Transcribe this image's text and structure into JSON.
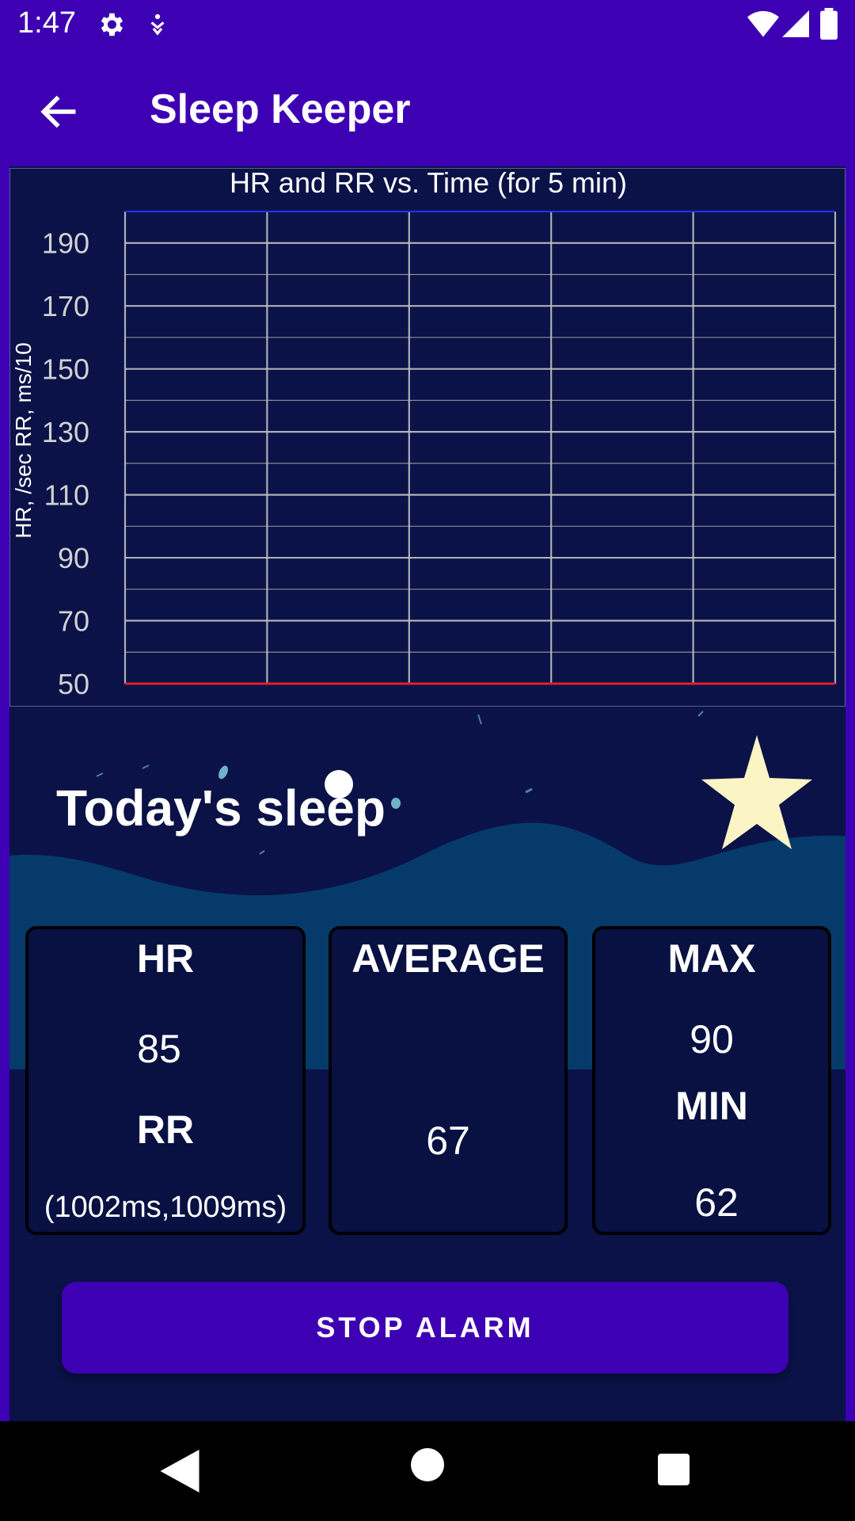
{
  "status_bar": {
    "time": "1:47",
    "icons": [
      "gear-icon",
      "accessibility-icon",
      "wifi-icon",
      "signal-icon",
      "battery-icon"
    ]
  },
  "app_bar": {
    "title": "Sleep Keeper",
    "back_icon": "arrow-left-icon"
  },
  "chart_data": {
    "type": "line",
    "title": "HR and RR vs. Time (for 5 min)",
    "ylabel": "HR, /sec RR, ms/10",
    "xlabel": "",
    "ylim": [
      50,
      200
    ],
    "yticks": [
      50,
      70,
      90,
      110,
      130,
      150,
      170,
      190
    ],
    "x_divisions": 5,
    "grid": true,
    "series": [],
    "colors": {
      "top_line": "#2233ff",
      "bottom_line": "#e0202a",
      "grid": "#c0c0c0"
    }
  },
  "sleep": {
    "title": "Today's sleep"
  },
  "cards": {
    "hr_label": "HR",
    "hr_value": "85",
    "rr_label": "RR",
    "rr_value": "(1002ms,1009ms)",
    "average_label": "AVERAGE",
    "average_value": "67",
    "max_label": "MAX",
    "max_value": "90",
    "min_label": "MIN",
    "min_value": "62"
  },
  "actions": {
    "stop_alarm": "STOP ALARM"
  },
  "nav": {
    "icons": [
      "back-triangle-icon",
      "home-circle-icon",
      "recents-square-icon"
    ]
  },
  "colors": {
    "primary": "#3d00b3",
    "night_bg": "#0a1247",
    "wave": "#063a6b",
    "star": "#fbf4c4"
  }
}
